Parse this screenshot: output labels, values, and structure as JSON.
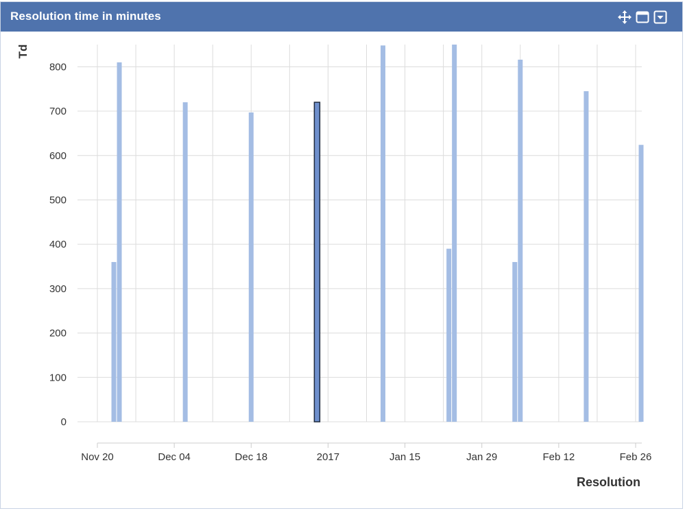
{
  "panel": {
    "title": "Resolution time in minutes",
    "icons": [
      "move-icon",
      "maximize-icon",
      "dropdown-icon"
    ]
  },
  "colors": {
    "header_bg": "#4f73ad",
    "bar": "#a4bde4",
    "bar_selected": "#6e8fcc",
    "grid": "#dcdcdc"
  },
  "chart_data": {
    "type": "bar",
    "ylabel": "Td",
    "xlabel": "Resolution",
    "ylim": [
      0,
      850
    ],
    "yticks": [
      0,
      100,
      200,
      300,
      400,
      500,
      600,
      700,
      800
    ],
    "x_range": [
      "2016-11-20",
      "2017-02-27"
    ],
    "x_ticks": [
      {
        "date": "2016-11-20",
        "label": "Nov 20"
      },
      {
        "date": "2016-12-04",
        "label": "Dec 04"
      },
      {
        "date": "2016-12-18",
        "label": "Dec 18"
      },
      {
        "date": "2017-01-01",
        "label": "2017"
      },
      {
        "date": "2017-01-15",
        "label": "Jan 15"
      },
      {
        "date": "2017-01-29",
        "label": "Jan 29"
      },
      {
        "date": "2017-02-12",
        "label": "Feb 12"
      },
      {
        "date": "2017-02-26",
        "label": "Feb 26"
      }
    ],
    "grid": true,
    "bars": [
      {
        "date": "2016-11-23",
        "value": 360
      },
      {
        "date": "2016-11-24",
        "value": 810
      },
      {
        "date": "2016-12-06",
        "value": 720
      },
      {
        "date": "2016-12-18",
        "value": 697
      },
      {
        "date": "2016-12-30",
        "value": 720,
        "selected": true
      },
      {
        "date": "2017-01-11",
        "value": 848
      },
      {
        "date": "2017-01-23",
        "value": 390
      },
      {
        "date": "2017-01-24",
        "value": 850
      },
      {
        "date": "2017-02-04",
        "value": 360
      },
      {
        "date": "2017-02-05",
        "value": 816
      },
      {
        "date": "2017-02-17",
        "value": 745
      },
      {
        "date": "2017-02-27",
        "value": 624
      }
    ]
  }
}
